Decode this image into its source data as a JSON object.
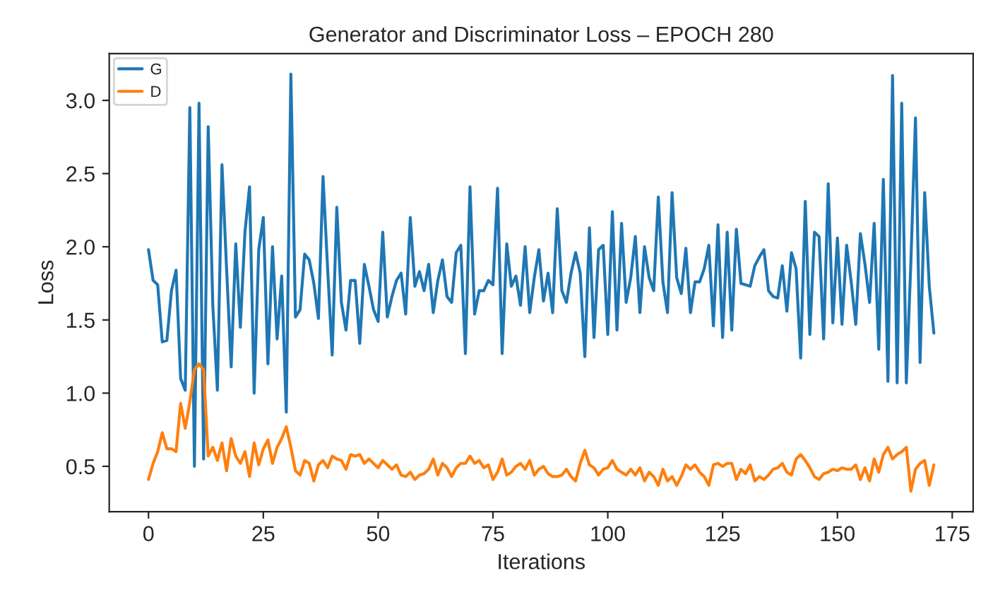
{
  "chart_data": {
    "type": "line",
    "title": "Generator and Discriminator Loss – EPOCH 280",
    "xlabel": "Iterations",
    "ylabel": "Loss",
    "x": [
      0,
      1,
      2,
      3,
      4,
      5,
      6,
      7,
      8,
      9,
      10,
      11,
      12,
      13,
      14,
      15,
      16,
      17,
      18,
      19,
      20,
      21,
      22,
      23,
      24,
      25,
      26,
      27,
      28,
      29,
      30,
      31,
      32,
      33,
      34,
      35,
      36,
      37,
      38,
      39,
      40,
      41,
      42,
      43,
      44,
      45,
      46,
      47,
      48,
      49,
      50,
      51,
      52,
      53,
      54,
      55,
      56,
      57,
      58,
      59,
      60,
      61,
      62,
      63,
      64,
      65,
      66,
      67,
      68,
      69,
      70,
      71,
      72,
      73,
      74,
      75,
      76,
      77,
      78,
      79,
      80,
      81,
      82,
      83,
      84,
      85,
      86,
      87,
      88,
      89,
      90,
      91,
      92,
      93,
      94,
      95,
      96,
      97,
      98,
      99,
      100,
      101,
      102,
      103,
      104,
      105,
      106,
      107,
      108,
      109,
      110,
      111,
      112,
      113,
      114,
      115,
      116,
      117,
      118,
      119,
      120,
      121,
      122,
      123,
      124,
      125,
      126,
      127,
      128,
      129,
      130,
      131,
      132,
      133,
      134,
      135,
      136,
      137,
      138,
      139,
      140,
      141,
      142,
      143,
      144,
      145,
      146,
      147,
      148,
      149,
      150,
      151,
      152,
      153,
      154,
      155,
      156,
      157,
      158,
      159,
      160,
      161,
      162,
      163,
      164,
      165,
      166,
      167,
      168,
      169,
      170,
      171
    ],
    "series": [
      {
        "name": "G",
        "color": "#1f77b4",
        "values": [
          1.98,
          1.77,
          1.74,
          1.35,
          1.36,
          1.7,
          1.84,
          1.1,
          1.02,
          2.95,
          0.5,
          2.98,
          0.55,
          2.82,
          1.6,
          1.02,
          2.56,
          1.85,
          1.18,
          2.02,
          1.45,
          2.1,
          2.41,
          1.0,
          1.98,
          2.2,
          1.2,
          2.0,
          1.37,
          1.8,
          0.87,
          3.18,
          1.52,
          1.57,
          1.95,
          1.91,
          1.75,
          1.51,
          2.48,
          1.85,
          1.26,
          2.27,
          1.62,
          1.43,
          1.77,
          1.77,
          1.34,
          1.88,
          1.73,
          1.57,
          1.49,
          2.1,
          1.52,
          1.66,
          1.77,
          1.82,
          1.54,
          2.2,
          1.73,
          1.83,
          1.7,
          1.88,
          1.55,
          1.77,
          1.91,
          1.66,
          1.62,
          1.96,
          2.01,
          1.27,
          2.41,
          1.54,
          1.7,
          1.7,
          1.77,
          1.74,
          2.4,
          1.27,
          2.02,
          1.73,
          1.8,
          1.6,
          2.0,
          1.55,
          1.79,
          1.98,
          1.63,
          1.82,
          1.55,
          2.26,
          1.7,
          1.62,
          1.82,
          1.96,
          1.82,
          1.25,
          2.13,
          1.38,
          1.98,
          2.01,
          1.4,
          2.24,
          1.43,
          2.16,
          1.62,
          1.79,
          2.07,
          1.55,
          2.0,
          1.79,
          1.7,
          2.34,
          1.76,
          1.55,
          2.37,
          1.79,
          1.68,
          1.99,
          1.55,
          1.76,
          1.76,
          1.85,
          2.01,
          1.46,
          2.15,
          1.38,
          2.1,
          1.43,
          2.12,
          1.75,
          1.74,
          1.73,
          1.87,
          1.93,
          1.98,
          1.7,
          1.66,
          1.65,
          1.87,
          1.56,
          1.96,
          1.85,
          1.24,
          2.31,
          1.4,
          2.1,
          2.07,
          1.37,
          2.43,
          1.48,
          2.06,
          1.47,
          2.01,
          1.76,
          1.47,
          2.09,
          1.88,
          1.62,
          2.16,
          1.3,
          2.46,
          1.08,
          3.17,
          1.07,
          2.98,
          1.07,
          1.9,
          2.88,
          1.21,
          2.37,
          1.73,
          1.41
        ]
      },
      {
        "name": "D",
        "color": "#ff7f0e",
        "values": [
          0.41,
          0.52,
          0.6,
          0.73,
          0.62,
          0.62,
          0.6,
          0.93,
          0.76,
          0.94,
          1.16,
          1.2,
          1.16,
          0.57,
          0.63,
          0.54,
          0.66,
          0.47,
          0.69,
          0.57,
          0.52,
          0.6,
          0.43,
          0.66,
          0.51,
          0.62,
          0.68,
          0.52,
          0.63,
          0.69,
          0.77,
          0.63,
          0.47,
          0.44,
          0.54,
          0.52,
          0.4,
          0.51,
          0.54,
          0.49,
          0.57,
          0.55,
          0.54,
          0.48,
          0.58,
          0.57,
          0.58,
          0.52,
          0.55,
          0.52,
          0.49,
          0.54,
          0.51,
          0.48,
          0.51,
          0.44,
          0.43,
          0.46,
          0.41,
          0.44,
          0.45,
          0.48,
          0.55,
          0.44,
          0.52,
          0.49,
          0.43,
          0.49,
          0.52,
          0.52,
          0.57,
          0.52,
          0.54,
          0.49,
          0.51,
          0.41,
          0.46,
          0.55,
          0.44,
          0.46,
          0.5,
          0.52,
          0.48,
          0.54,
          0.44,
          0.48,
          0.5,
          0.45,
          0.43,
          0.43,
          0.44,
          0.48,
          0.43,
          0.4,
          0.52,
          0.61,
          0.51,
          0.49,
          0.44,
          0.48,
          0.49,
          0.54,
          0.48,
          0.46,
          0.44,
          0.48,
          0.44,
          0.49,
          0.4,
          0.46,
          0.43,
          0.37,
          0.48,
          0.4,
          0.43,
          0.37,
          0.43,
          0.51,
          0.48,
          0.51,
          0.46,
          0.43,
          0.37,
          0.51,
          0.52,
          0.5,
          0.52,
          0.52,
          0.41,
          0.48,
          0.45,
          0.51,
          0.4,
          0.43,
          0.41,
          0.44,
          0.48,
          0.49,
          0.52,
          0.46,
          0.44,
          0.55,
          0.58,
          0.54,
          0.49,
          0.43,
          0.41,
          0.45,
          0.46,
          0.48,
          0.47,
          0.49,
          0.48,
          0.48,
          0.51,
          0.41,
          0.49,
          0.4,
          0.55,
          0.46,
          0.58,
          0.63,
          0.55,
          0.58,
          0.6,
          0.63,
          0.33,
          0.48,
          0.52,
          0.54,
          0.37,
          0.51
        ]
      }
    ],
    "xlim": [
      -8.55,
      179.55
    ],
    "ylim": [
      0.19,
      3.32
    ],
    "xticks": [
      0,
      25,
      50,
      75,
      100,
      125,
      150,
      175
    ],
    "yticks": [
      0.5,
      {
        "value": 1,
        "label": "1.0"
      },
      1.5,
      {
        "value": 2,
        "label": "2.0"
      },
      2.5,
      {
        "value": 3,
        "label": "3.0"
      }
    ],
    "legend": "top left",
    "grid": false,
    "line_style": "solid",
    "marker": "none"
  }
}
